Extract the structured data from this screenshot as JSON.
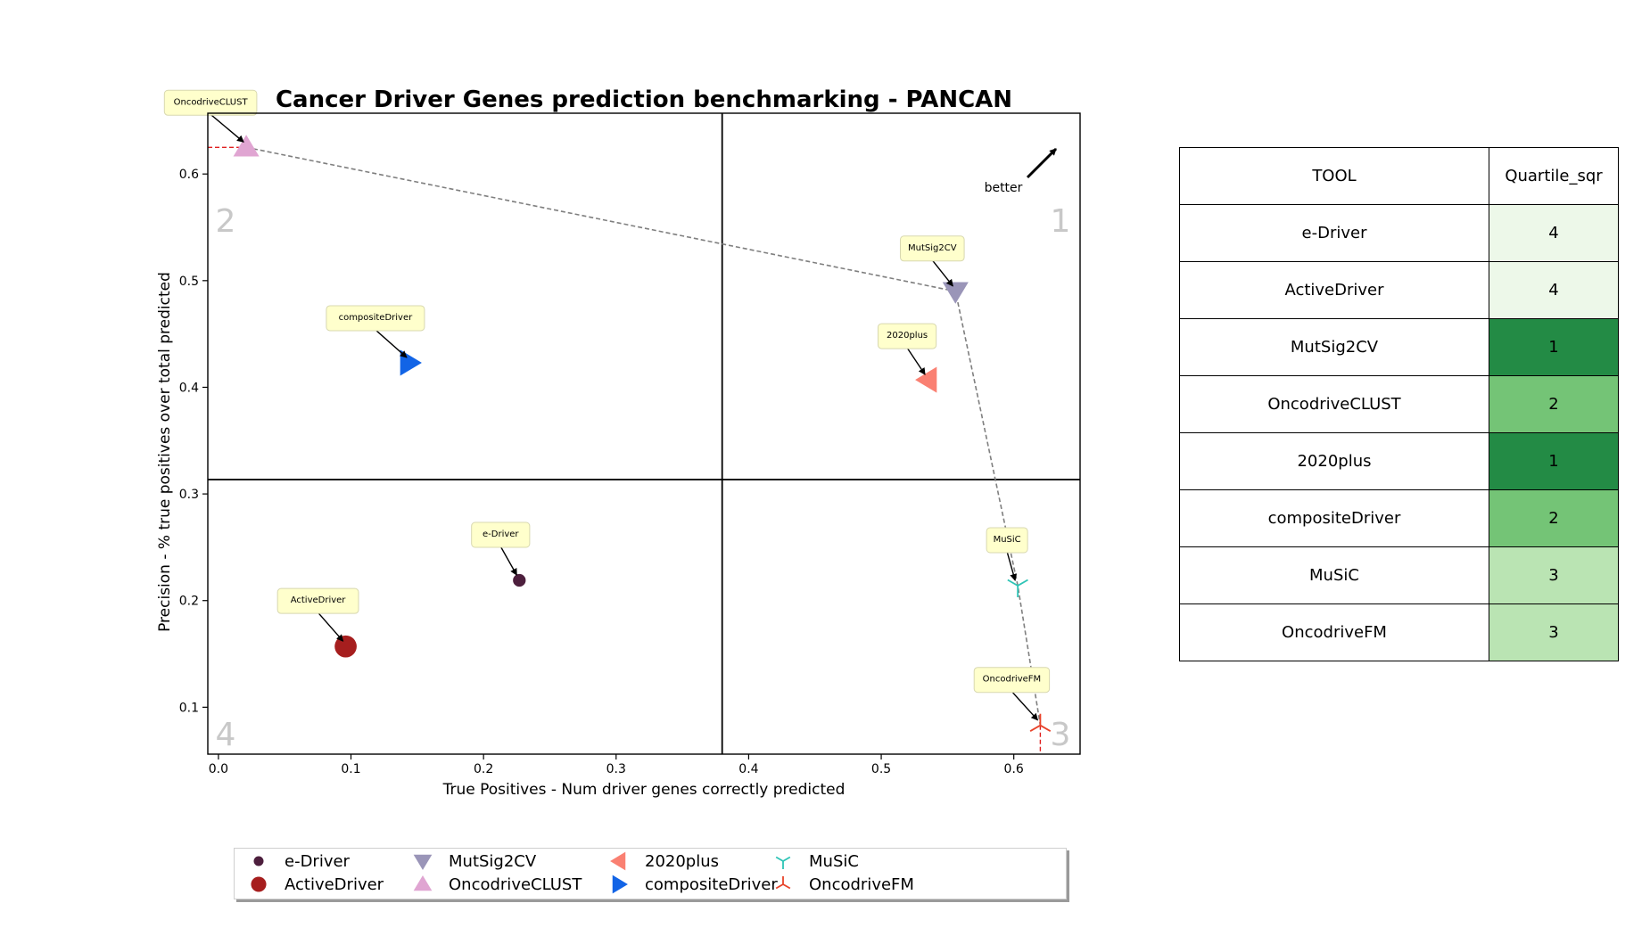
{
  "chart_data": {
    "type": "scatter",
    "title": "Cancer Driver Genes prediction benchmarking - PANCAN",
    "xlabel": "True Positives - Num driver genes correctly predicted",
    "ylabel": "Precision - % true positives over total predicted",
    "xlim": [
      -0.008,
      0.65
    ],
    "ylim": [
      0.056,
      0.657
    ],
    "xticks": [
      0.0,
      0.1,
      0.2,
      0.3,
      0.4,
      0.5,
      0.6
    ],
    "xtick_labels": [
      "0.0",
      "0.1",
      "0.2",
      "0.3",
      "0.4",
      "0.5",
      "0.6"
    ],
    "yticks": [
      0.1,
      0.2,
      0.3,
      0.4,
      0.5,
      0.6
    ],
    "ytick_labels": [
      "0.1",
      "0.2",
      "0.3",
      "0.4",
      "0.5",
      "0.6"
    ],
    "grid": false,
    "quadrant_dividers": {
      "x": 0.38,
      "y": 0.3135
    },
    "quadrant_labels": [
      "1",
      "2",
      "3",
      "4"
    ],
    "better_label": "better",
    "pareto_front": [
      "OncodriveCLUST",
      "MutSig2CV",
      "MuSiC",
      "OncodriveFM"
    ],
    "series": [
      {
        "name": "e-Driver",
        "x": 0.227,
        "y": 0.219,
        "marker": "circle-small",
        "color": "#4d1f3d"
      },
      {
        "name": "ActiveDriver",
        "x": 0.096,
        "y": 0.157,
        "marker": "circle",
        "color": "#a61e1e"
      },
      {
        "name": "MutSig2CV",
        "x": 0.556,
        "y": 0.49,
        "marker": "triangle-down",
        "color": "#9a95b8"
      },
      {
        "name": "OncodriveCLUST",
        "x": 0.021,
        "y": 0.625,
        "marker": "triangle-up",
        "color": "#e0a5d2"
      },
      {
        "name": "2020plus",
        "x": 0.535,
        "y": 0.407,
        "marker": "triangle-left",
        "color": "#fa8072"
      },
      {
        "name": "compositeDriver",
        "x": 0.144,
        "y": 0.423,
        "marker": "triangle-right",
        "color": "#1264e6"
      },
      {
        "name": "MuSiC",
        "x": 0.603,
        "y": 0.214,
        "marker": "tri-down",
        "color": "#2ec4b6"
      },
      {
        "name": "OncodriveFM",
        "x": 0.62,
        "y": 0.083,
        "marker": "tri-up",
        "color": "#e8432a"
      }
    ],
    "legend_location": "below"
  },
  "table": {
    "headers": [
      "TOOL",
      "Quartile_sqr"
    ],
    "rows": [
      {
        "tool": "e-Driver",
        "quartile": "4",
        "color": "#edf8e9"
      },
      {
        "tool": "ActiveDriver",
        "quartile": "4",
        "color": "#edf8e9"
      },
      {
        "tool": "MutSig2CV",
        "quartile": "1",
        "color": "#238b45"
      },
      {
        "tool": "OncodriveCLUST",
        "quartile": "2",
        "color": "#74c476"
      },
      {
        "tool": "2020plus",
        "quartile": "1",
        "color": "#238b45"
      },
      {
        "tool": "compositeDriver",
        "quartile": "2",
        "color": "#74c476"
      },
      {
        "tool": "MuSiC",
        "quartile": "3",
        "color": "#bae4b3"
      },
      {
        "tool": "OncodriveFM",
        "quartile": "3",
        "color": "#bae4b3"
      }
    ]
  }
}
